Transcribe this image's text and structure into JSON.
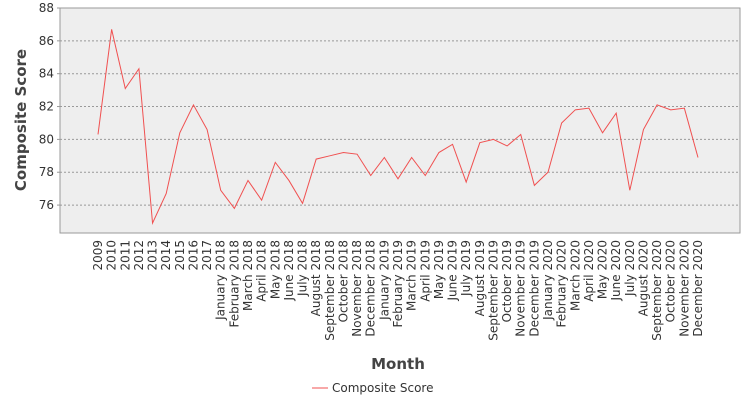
{
  "chart_data": {
    "type": "line",
    "x_label": "Month",
    "y_label": "Composite Score",
    "categories": [
      "2009",
      "2010",
      "2011",
      "2012",
      "2013",
      "2014",
      "2015",
      "2016",
      "2017",
      "January 2018",
      "February 2018",
      "March 2018",
      "April 2018",
      "May 2018",
      "June 2018",
      "July 2018",
      "August 2018",
      "September 2018",
      "October 2018",
      "November 2018",
      "December 2018",
      "January 2019",
      "February 2019",
      "March 2019",
      "April 2019",
      "May 2019",
      "June 2019",
      "July 2019",
      "August 2019",
      "September 2019",
      "October 2019",
      "November 2019",
      "December 2019",
      "January 2020",
      "February 2020",
      "March 2020",
      "April 2020",
      "May 2020",
      "June 2020",
      "July 2020",
      "August 2020",
      "September 2020",
      "October 2020",
      "November 2020",
      "December 2020"
    ],
    "series": [
      {
        "name": "Composite Score",
        "color": "#f05050",
        "values": [
          80.3,
          86.7,
          83.1,
          84.3,
          74.9,
          76.7,
          80.4,
          82.1,
          80.6,
          76.9,
          75.8,
          77.5,
          76.3,
          78.6,
          77.5,
          76.1,
          78.8,
          79.0,
          79.2,
          79.1,
          77.8,
          78.9,
          77.6,
          78.9,
          77.8,
          79.2,
          79.7,
          77.4,
          79.8,
          80.0,
          79.6,
          80.3,
          77.2,
          78.0,
          81.0,
          81.8,
          81.9,
          80.4,
          81.6,
          76.9,
          80.6,
          82.1,
          81.8,
          81.9,
          78.9
        ]
      }
    ],
    "ylim": [
      74.3,
      88
    ],
    "yticks": [
      76,
      78,
      80,
      82,
      84,
      86,
      88
    ],
    "grid": true,
    "legend": "bottom"
  }
}
